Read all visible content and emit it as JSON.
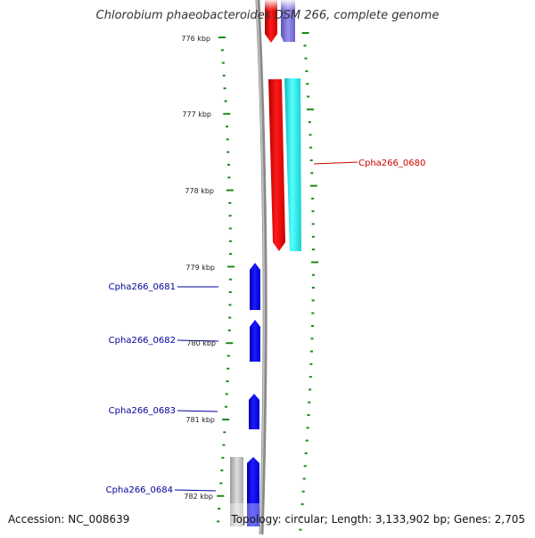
{
  "title": "Chlorobium phaeobacteroides DSM 266, complete genome",
  "accession": "Accession: NC_008639",
  "topology": "Topology: circular; Length: 3,133,902 bp; Genes: 2,705",
  "colors": {
    "backbone": "#808080",
    "ticks": "#1a8a1a",
    "forward_gene": "#0000ee",
    "reverse_gene": "#ee0000",
    "cyan_feature": "#22eeee",
    "purple_feature": "#7a70dd",
    "grey_feature": "#b4b4b4",
    "label_red": "#cc0000",
    "label_blue": "#000099"
  },
  "scale_labels": [
    {
      "text": "776 kbp"
    },
    {
      "text": "777 kbp"
    },
    {
      "text": "778 kbp"
    },
    {
      "text": "779 kbp"
    },
    {
      "text": "780 kbp"
    },
    {
      "text": "781 kbp"
    },
    {
      "text": "782 kbp"
    }
  ],
  "gene_labels": [
    {
      "text": "Cpha266_0680",
      "strand": "reverse"
    },
    {
      "text": "Cpha266_0681",
      "strand": "forward"
    },
    {
      "text": "Cpha266_0682",
      "strand": "forward"
    },
    {
      "text": "Cpha266_0683",
      "strand": "forward"
    },
    {
      "text": "Cpha266_0684",
      "strand": "forward"
    }
  ]
}
